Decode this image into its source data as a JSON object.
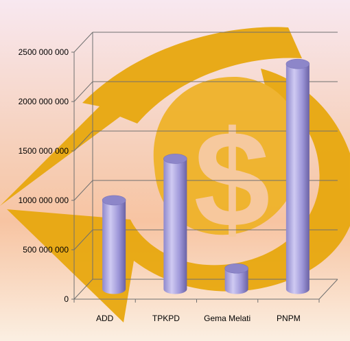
{
  "chart_data": {
    "type": "bar",
    "categories": [
      "ADD",
      "TPKPD",
      "Gema Melati",
      "PNPM"
    ],
    "values": [
      900000000,
      1320000000,
      210000000,
      2280000000
    ],
    "y_ticks": [
      "0",
      "500 000 000",
      "1000 000 000",
      "1500 000 000",
      "2000 000 000",
      "2500 000 000"
    ],
    "ylim": [
      0,
      2500000000
    ],
    "title": "",
    "xlabel": "",
    "ylabel": "",
    "grid": true,
    "legend": "none",
    "bar_shape": "cylinder"
  },
  "colors": {
    "background_top": "#f7e3ec",
    "background_mid": "#f7c9a8",
    "background_bottom": "#fbeedf",
    "graphic": "#e8a80f",
    "bar_light": "#c8c3ee",
    "bar_mid": "#9a93d6",
    "bar_dark": "#6c63a6",
    "bar_top": "#8d86c9",
    "grid": "#6f6f6f",
    "text": "#000000"
  },
  "icons": {
    "background": "dollar-sign-icon"
  }
}
